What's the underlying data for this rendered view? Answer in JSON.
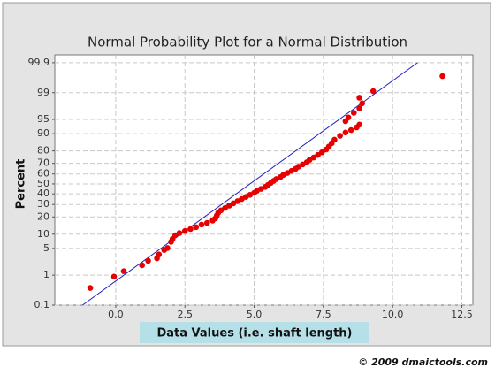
{
  "chart_data": {
    "type": "probability-scatter",
    "title": "Normal Probability Plot for a Normal Distribution",
    "x_label": "Data Values (i.e. shaft length)",
    "y_label": "Percent",
    "footer": "© 2009 dmaictools.com",
    "y_scale": "probit",
    "grid": true,
    "color": "#e60000",
    "xlim": [
      -2.2,
      12.9
    ],
    "ylim": [
      0.1,
      99.95
    ],
    "xticks": [
      {
        "value": 0,
        "label": "0.0"
      },
      2.5,
      {
        "value": 5,
        "label": "5.0"
      },
      7.5,
      {
        "value": 10,
        "label": "10.0"
      },
      12.5
    ],
    "yticks": [
      0.1,
      1,
      5,
      10,
      20,
      30,
      40,
      50,
      60,
      70,
      80,
      90,
      95,
      99,
      99.9
    ],
    "x": [
      -0.92,
      -0.06,
      0.29,
      0.95,
      1.17,
      1.49,
      1.56,
      1.75,
      1.87,
      2.0,
      2.05,
      2.15,
      2.3,
      2.5,
      2.7,
      2.9,
      3.1,
      3.3,
      3.5,
      3.6,
      3.65,
      3.7,
      3.8,
      3.95,
      4.1,
      4.25,
      4.4,
      4.55,
      4.7,
      4.85,
      5.0,
      5.1,
      5.25,
      5.4,
      5.5,
      5.6,
      5.7,
      5.8,
      5.95,
      6.05,
      6.2,
      6.35,
      6.5,
      6.6,
      6.75,
      6.9,
      7.0,
      7.15,
      7.3,
      7.45,
      7.6,
      7.7,
      7.8,
      7.9,
      8.1,
      8.3,
      8.5,
      8.7,
      8.8,
      8.3,
      8.4,
      8.6,
      8.8,
      8.9,
      8.8,
      9.3,
      11.8
    ],
    "values": [
      0.4,
      0.9,
      1.3,
      1.9,
      2.5,
      2.9,
      3.6,
      4.6,
      5.1,
      7,
      8,
      9.5,
      10.5,
      11.5,
      12.5,
      13.5,
      15,
      16,
      17.5,
      19,
      21,
      23,
      25,
      27,
      29,
      31,
      33,
      35,
      37,
      39,
      41,
      43,
      45,
      47,
      49,
      51,
      53,
      55,
      57,
      59,
      61,
      63,
      65,
      67,
      69,
      71,
      73,
      75,
      77,
      79,
      81,
      83,
      85,
      87,
      89,
      90.5,
      91.5,
      92.5,
      93.5,
      94.5,
      95.5,
      96.5,
      97.3,
      98,
      98.6,
      99.1,
      99.7
    ],
    "reference_line": {
      "color": "#2020c0",
      "x": [
        -1.2,
        10.9
      ],
      "values": [
        0.1,
        99.9
      ]
    }
  }
}
